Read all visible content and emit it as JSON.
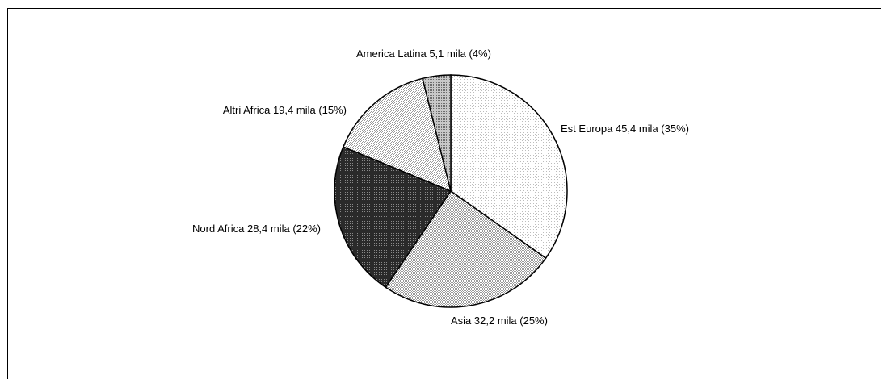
{
  "chart_data": {
    "type": "pie",
    "start": "12 o'clock",
    "direction": "clockwise",
    "slices": [
      {
        "name": "Est Europa",
        "value": 45.4,
        "percent": 35,
        "label": "Est Europa 45,4 mila (35%)",
        "fill": "#ffffff"
      },
      {
        "name": "Asia",
        "value": 32.2,
        "percent": 25,
        "label": "Asia 32,2 mila (25%)",
        "fill": "#d9d9d9"
      },
      {
        "name": "Nord Africa",
        "value": 28.4,
        "percent": 22,
        "label": "Nord Africa 28,4 mila (22%)",
        "fill": "#3a3a3a"
      },
      {
        "name": "Altri Africa",
        "value": 19.4,
        "percent": 15,
        "label": "Altri Africa 19,4 mila (15%)",
        "fill": "#e3e3e3"
      },
      {
        "name": "America Latina",
        "value": 5.1,
        "percent": 4,
        "label": "America Latina 5,1 mila (4%)",
        "fill": "#a6a6a6"
      }
    ]
  }
}
